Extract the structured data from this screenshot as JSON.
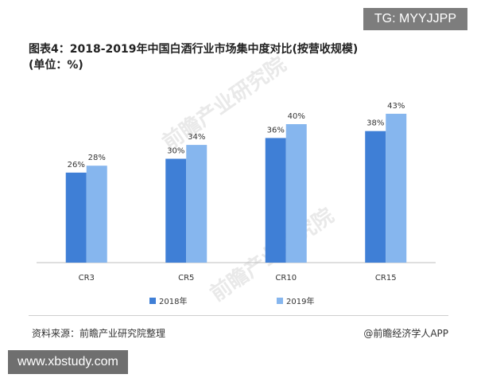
{
  "badges": {
    "tg": "TG: MYYJJPP",
    "site": "www.xbstudy.com"
  },
  "title_line1": "图表4：2018-2019年中国白酒行业市场集中度对比(按营收规模)",
  "title_line2": "(单位：%)",
  "watermark_text": "前瞻产业研究院",
  "footer": {
    "source": "资料来源：前瞻产业研究院整理",
    "brand": "@前瞻经济学人APP"
  },
  "colors": {
    "series_2018": "#3f7fd6",
    "series_2019": "#86b6ee"
  },
  "chart_data": {
    "type": "bar",
    "title": "图表4：2018-2019年中国白酒行业市场集中度对比(按营收规模)",
    "subtitle": "(单位：%)",
    "categories": [
      "CR3",
      "CR5",
      "CR10",
      "CR15"
    ],
    "series": [
      {
        "name": "2018年",
        "values": [
          26,
          30,
          36,
          38
        ],
        "labels": [
          "26%",
          "30%",
          "36%",
          "38%"
        ]
      },
      {
        "name": "2019年",
        "values": [
          28,
          34,
          40,
          43
        ],
        "labels": [
          "28%",
          "34%",
          "40%",
          "43%"
        ]
      }
    ],
    "ylim": [
      0,
      50
    ],
    "grid": false,
    "legend": "bottom"
  }
}
